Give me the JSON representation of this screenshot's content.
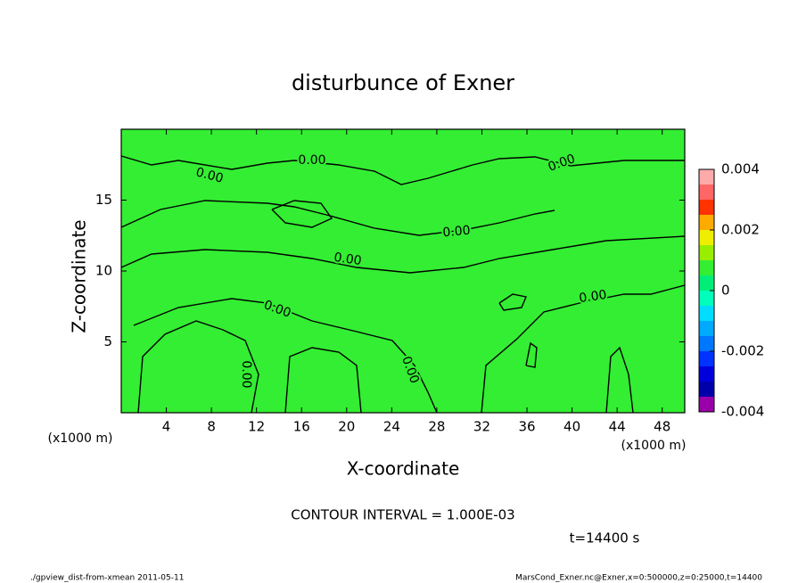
{
  "chart_data": {
    "type": "contour",
    "title": "disturbunce of Exner",
    "xlabel": "X-coordinate",
    "ylabel": "Z-coordinate",
    "x_unit": "(x1000 m)",
    "y_unit": "(x1000 m)",
    "xlim": [
      0,
      50
    ],
    "xticks": [
      4,
      8,
      12,
      16,
      20,
      24,
      28,
      32,
      36,
      40,
      44,
      48
    ],
    "ylim": [
      0,
      20
    ],
    "yticks": [
      5,
      10,
      15
    ],
    "fill_color": "#33ee33",
    "contour_level": {
      "value": 0,
      "label": "0.00"
    },
    "colorbar": {
      "lim": [
        -0.004,
        0.004
      ],
      "ticks": [
        -0.004,
        -0.002,
        0,
        0.002,
        0.004
      ],
      "colors": [
        "#9900aa",
        "#0000aa",
        "#0000dd",
        "#0033ff",
        "#0077ff",
        "#00aaff",
        "#00ddff",
        "#00ffbb",
        "#00ee77",
        "#33ee33",
        "#99ee00",
        "#eeee00",
        "#ffaa00",
        "#ff3300",
        "#ff6666",
        "#ffaaaa"
      ]
    },
    "contour_interval": "CONTOUR INTERVAL = 1.000E-03",
    "time_label": "t=14400 s",
    "footer_left": "./gpview_dist-from-xmean  2011-05-11",
    "footer_right": "MarsCond_Exner.nc@Exner,x=0:500000,z=0:25000,t=14400"
  }
}
